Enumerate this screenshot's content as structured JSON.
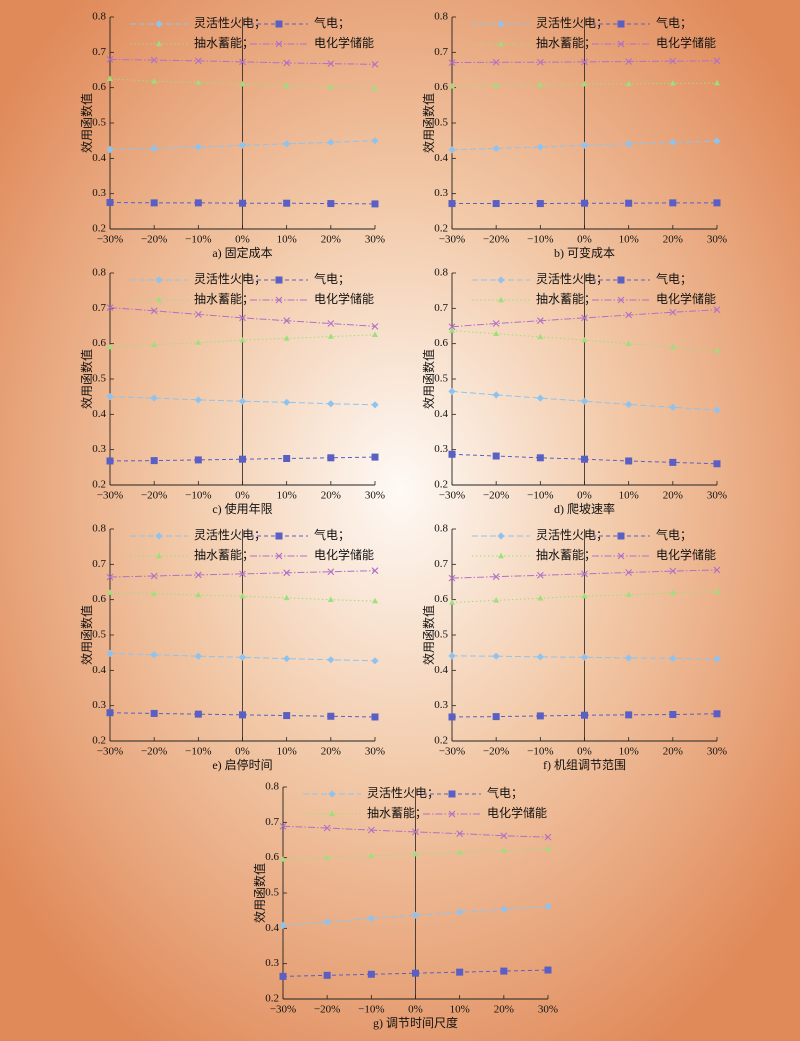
{
  "chart_data": [
    {
      "type": "line",
      "title": "a) 固定成本",
      "ylabel": "效用函数值",
      "categories": [
        "−30%",
        "−20%",
        "−10%",
        "0%",
        "10%",
        "20%",
        "30%"
      ],
      "ylim": [
        0.2,
        0.8
      ],
      "yticks": [
        0.2,
        0.3,
        0.4,
        0.5,
        0.6,
        0.7,
        0.8
      ],
      "series": [
        {
          "name": "灵活性火电；",
          "color": "#8fc3ef",
          "marker": "diamond",
          "values": [
            0.425,
            0.428,
            0.432,
            0.437,
            0.441,
            0.445,
            0.45
          ]
        },
        {
          "name": "气电；",
          "color": "#5a5fc4",
          "marker": "square",
          "values": [
            0.275,
            0.274,
            0.274,
            0.273,
            0.273,
            0.272,
            0.271
          ]
        },
        {
          "name": "抽水蓄能；",
          "color": "#9be07a",
          "marker": "triangle",
          "values": [
            0.625,
            0.618,
            0.614,
            0.61,
            0.606,
            0.602,
            0.598
          ]
        },
        {
          "name": "电化学储能",
          "color": "#b070c8",
          "marker": "cross",
          "values": [
            0.68,
            0.678,
            0.676,
            0.673,
            0.67,
            0.668,
            0.666
          ]
        }
      ]
    },
    {
      "type": "line",
      "title": "b) 可变成本",
      "ylabel": "效用函数值",
      "categories": [
        "−30%",
        "−20%",
        "−10%",
        "0%",
        "10%",
        "20%",
        "30%"
      ],
      "ylim": [
        0.2,
        0.8
      ],
      "yticks": [
        0.2,
        0.3,
        0.4,
        0.5,
        0.6,
        0.7,
        0.8
      ],
      "series": [
        {
          "name": "灵活性火电；",
          "color": "#8fc3ef",
          "marker": "diamond",
          "values": [
            0.424,
            0.428,
            0.432,
            0.437,
            0.441,
            0.445,
            0.449
          ]
        },
        {
          "name": "气电；",
          "color": "#5a5fc4",
          "marker": "square",
          "values": [
            0.272,
            0.272,
            0.272,
            0.273,
            0.273,
            0.274,
            0.274
          ]
        },
        {
          "name": "抽水蓄能；",
          "color": "#9be07a",
          "marker": "triangle",
          "values": [
            0.604,
            0.606,
            0.608,
            0.61,
            0.611,
            0.612,
            0.613
          ]
        },
        {
          "name": "电化学储能",
          "color": "#b070c8",
          "marker": "cross",
          "values": [
            0.671,
            0.672,
            0.672,
            0.673,
            0.674,
            0.675,
            0.676
          ]
        }
      ]
    },
    {
      "type": "line",
      "title": "c) 使用年限",
      "ylabel": "效用函数值",
      "categories": [
        "−30%",
        "−20%",
        "−10%",
        "0%",
        "10%",
        "20%",
        "30%"
      ],
      "ylim": [
        0.2,
        0.8
      ],
      "yticks": [
        0.2,
        0.3,
        0.4,
        0.5,
        0.6,
        0.7,
        0.8
      ],
      "series": [
        {
          "name": "灵活性火电；",
          "color": "#8fc3ef",
          "marker": "diamond",
          "values": [
            0.45,
            0.446,
            0.441,
            0.437,
            0.434,
            0.43,
            0.427
          ]
        },
        {
          "name": "气电；",
          "color": "#5a5fc4",
          "marker": "square",
          "values": [
            0.268,
            0.269,
            0.271,
            0.273,
            0.275,
            0.277,
            0.279
          ]
        },
        {
          "name": "抽水蓄能；",
          "color": "#9be07a",
          "marker": "triangle",
          "values": [
            0.59,
            0.597,
            0.603,
            0.61,
            0.615,
            0.62,
            0.625
          ]
        },
        {
          "name": "电化学储能",
          "color": "#b070c8",
          "marker": "cross",
          "values": [
            0.702,
            0.693,
            0.683,
            0.673,
            0.665,
            0.657,
            0.649
          ]
        }
      ]
    },
    {
      "type": "line",
      "title": "d) 爬坡速率",
      "ylabel": "效用函数值",
      "categories": [
        "−30%",
        "−20%",
        "−10%",
        "0%",
        "10%",
        "20%",
        "30%"
      ],
      "ylim": [
        0.2,
        0.8
      ],
      "yticks": [
        0.2,
        0.3,
        0.4,
        0.5,
        0.6,
        0.7,
        0.8
      ],
      "series": [
        {
          "name": "灵活性火电；",
          "color": "#8fc3ef",
          "marker": "diamond",
          "values": [
            0.465,
            0.455,
            0.446,
            0.437,
            0.428,
            0.42,
            0.412
          ]
        },
        {
          "name": "气电；",
          "color": "#5a5fc4",
          "marker": "square",
          "values": [
            0.287,
            0.282,
            0.277,
            0.273,
            0.268,
            0.264,
            0.26
          ]
        },
        {
          "name": "抽水蓄能；",
          "color": "#9be07a",
          "marker": "triangle",
          "values": [
            0.637,
            0.628,
            0.619,
            0.61,
            0.6,
            0.59,
            0.58
          ]
        },
        {
          "name": "电化学储能",
          "color": "#b070c8",
          "marker": "cross",
          "values": [
            0.648,
            0.657,
            0.665,
            0.673,
            0.681,
            0.689,
            0.696
          ]
        }
      ]
    },
    {
      "type": "line",
      "title": "e) 启停时间",
      "ylabel": "效用函数值",
      "categories": [
        "−30%",
        "−20%",
        "−10%",
        "0%",
        "10%",
        "20%",
        "30%"
      ],
      "ylim": [
        0.2,
        0.8
      ],
      "yticks": [
        0.2,
        0.3,
        0.4,
        0.5,
        0.6,
        0.7,
        0.8
      ],
      "series": [
        {
          "name": "灵活性火电；",
          "color": "#8fc3ef",
          "marker": "diamond",
          "values": [
            0.448,
            0.444,
            0.44,
            0.437,
            0.433,
            0.43,
            0.427
          ]
        },
        {
          "name": "气电；",
          "color": "#5a5fc4",
          "marker": "square",
          "values": [
            0.28,
            0.278,
            0.276,
            0.274,
            0.272,
            0.27,
            0.268
          ]
        },
        {
          "name": "抽水蓄能；",
          "color": "#9be07a",
          "marker": "triangle",
          "values": [
            0.62,
            0.617,
            0.613,
            0.61,
            0.605,
            0.6,
            0.596
          ]
        },
        {
          "name": "电化学储能",
          "color": "#b070c8",
          "marker": "cross",
          "values": [
            0.664,
            0.667,
            0.67,
            0.673,
            0.676,
            0.679,
            0.682
          ]
        }
      ]
    },
    {
      "type": "line",
      "title": "f) 机组调节范围",
      "ylabel": "效用函数值",
      "categories": [
        "−30%",
        "−20%",
        "−10%",
        "0%",
        "10%",
        "20%",
        "30%"
      ],
      "ylim": [
        0.2,
        0.8
      ],
      "yticks": [
        0.2,
        0.3,
        0.4,
        0.5,
        0.6,
        0.7,
        0.8
      ],
      "series": [
        {
          "name": "灵活性火电；",
          "color": "#8fc3ef",
          "marker": "diamond",
          "values": [
            0.441,
            0.44,
            0.438,
            0.437,
            0.435,
            0.434,
            0.432
          ]
        },
        {
          "name": "气电；",
          "color": "#5a5fc4",
          "marker": "square",
          "values": [
            0.268,
            0.269,
            0.271,
            0.273,
            0.274,
            0.275,
            0.277
          ]
        },
        {
          "name": "抽水蓄能；",
          "color": "#9be07a",
          "marker": "triangle",
          "values": [
            0.592,
            0.598,
            0.604,
            0.61,
            0.614,
            0.619,
            0.623
          ]
        },
        {
          "name": "电化学储能",
          "color": "#b070c8",
          "marker": "cross",
          "values": [
            0.661,
            0.665,
            0.669,
            0.673,
            0.677,
            0.681,
            0.684
          ]
        }
      ]
    },
    {
      "type": "line",
      "title": "g) 调节时间尺度",
      "ylabel": "效用函数值",
      "categories": [
        "−30%",
        "−20%",
        "−10%",
        "0%",
        "10%",
        "20%",
        "30%"
      ],
      "ylim": [
        0.2,
        0.8
      ],
      "yticks": [
        0.2,
        0.3,
        0.4,
        0.5,
        0.6,
        0.7,
        0.8
      ],
      "series": [
        {
          "name": "灵活性火电；",
          "color": "#8fc3ef",
          "marker": "diamond",
          "values": [
            0.408,
            0.418,
            0.428,
            0.437,
            0.446,
            0.454,
            0.462
          ]
        },
        {
          "name": "气电；",
          "color": "#5a5fc4",
          "marker": "square",
          "values": [
            0.264,
            0.267,
            0.27,
            0.273,
            0.276,
            0.279,
            0.282
          ]
        },
        {
          "name": "抽水蓄能；",
          "color": "#9be07a",
          "marker": "triangle",
          "values": [
            0.595,
            0.6,
            0.605,
            0.61,
            0.615,
            0.62,
            0.625
          ]
        },
        {
          "name": "电化学储能",
          "color": "#b070c8",
          "marker": "cross",
          "values": [
            0.689,
            0.684,
            0.678,
            0.673,
            0.668,
            0.662,
            0.658
          ]
        }
      ]
    }
  ]
}
